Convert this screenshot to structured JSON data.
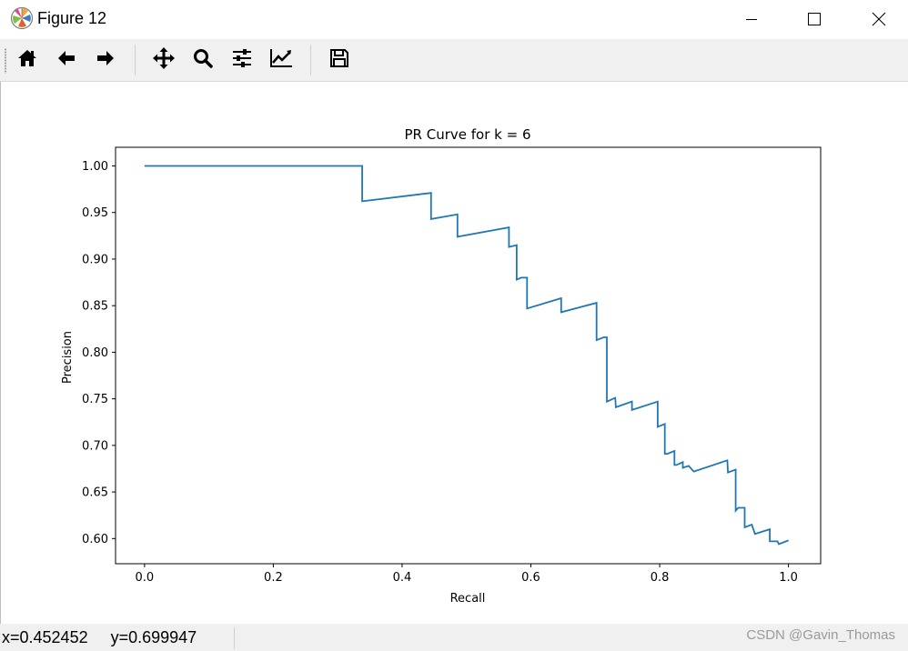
{
  "window": {
    "title": "Figure 12",
    "icon": "matplotlib-logo-icon",
    "controls": [
      "minimize-icon",
      "maximize-icon",
      "close-icon"
    ]
  },
  "toolbar": {
    "buttons": [
      {
        "name": "home",
        "icon": "home-icon"
      },
      {
        "name": "back",
        "icon": "arrow-left-icon"
      },
      {
        "name": "forward",
        "icon": "arrow-right-icon"
      },
      {
        "name": "pan",
        "icon": "move-icon"
      },
      {
        "name": "zoom",
        "icon": "magnifier-icon"
      },
      {
        "name": "subplots",
        "icon": "sliders-icon"
      },
      {
        "name": "edit-axis",
        "icon": "line-chart-icon"
      },
      {
        "name": "save",
        "icon": "floppy-disk-icon"
      }
    ]
  },
  "status": {
    "coords": "x=0.452452     y=0.699947",
    "watermark": "CSDN @Gavin_Thomas"
  },
  "chart_data": {
    "type": "line",
    "title": "PR Curve for k = 6",
    "xlabel": "Recall",
    "ylabel": "Precision",
    "xlim": [
      -0.045,
      1.05
    ],
    "ylim": [
      0.573,
      1.02
    ],
    "xticks": [
      "0.0",
      "0.2",
      "0.4",
      "0.6",
      "0.8",
      "1.0"
    ],
    "yticks": [
      "0.60",
      "0.65",
      "0.70",
      "0.75",
      "0.80",
      "0.85",
      "0.90",
      "0.95",
      "1.00"
    ],
    "grid": false,
    "color": "#1f77b4",
    "series": [
      {
        "x": [
          0.0,
          0.338,
          0.338,
          0.445,
          0.445,
          0.486,
          0.486,
          0.566,
          0.566,
          0.578,
          0.578,
          0.585,
          0.585,
          0.594,
          0.594,
          0.647,
          0.647,
          0.702,
          0.702,
          0.713,
          0.713,
          0.718,
          0.718,
          0.731,
          0.731,
          0.732,
          0.732,
          0.757,
          0.757,
          0.797,
          0.797,
          0.808,
          0.808,
          0.812,
          0.812,
          0.823,
          0.823,
          0.826,
          0.826,
          0.836,
          0.836,
          0.845,
          0.845,
          0.853,
          0.853,
          0.905,
          0.905,
          0.906,
          0.906,
          0.918,
          0.918,
          0.922,
          0.922,
          0.932,
          0.932,
          0.943,
          0.943,
          0.948,
          0.948,
          0.971,
          0.971,
          0.983,
          0.983,
          0.985,
          0.985,
          1.0
        ],
        "y": [
          1.0,
          1.0,
          0.962,
          0.971,
          0.943,
          0.948,
          0.924,
          0.934,
          0.913,
          0.915,
          0.878,
          0.88,
          0.88,
          0.88,
          0.847,
          0.858,
          0.843,
          0.853,
          0.813,
          0.816,
          0.816,
          0.816,
          0.747,
          0.751,
          0.751,
          0.741,
          0.741,
          0.747,
          0.738,
          0.747,
          0.72,
          0.723,
          0.691,
          0.691,
          0.691,
          0.694,
          0.679,
          0.679,
          0.679,
          0.682,
          0.676,
          0.678,
          0.678,
          0.672,
          0.672,
          0.684,
          0.684,
          0.671,
          0.671,
          0.674,
          0.63,
          0.633,
          0.633,
          0.633,
          0.612,
          0.615,
          0.615,
          0.605,
          0.605,
          0.61,
          0.597,
          0.597,
          0.597,
          0.594,
          0.594,
          0.598
        ]
      }
    ]
  }
}
